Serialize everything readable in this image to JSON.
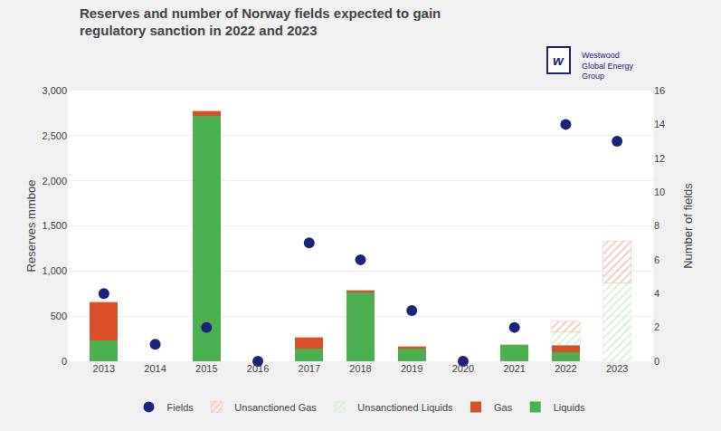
{
  "chart_data": {
    "type": "bar",
    "title": "Reserves and number of Norway fields expected to gain\nregulatory sanction in 2022 and 2023",
    "ylabel": "Reserves mmboe",
    "y2label": "Number of fields",
    "annotations": [
      "w",
      "Westwood\nGlobal Energy\nGroup"
    ],
    "categories": [
      "2013",
      "2014",
      "2015",
      "2016",
      "2017",
      "2018",
      "2019",
      "2020",
      "2021",
      "2022",
      "2023"
    ],
    "stacked": true,
    "series": [
      {
        "name": "Liquids",
        "color": "#4CAF50",
        "values": [
          230,
          0,
          2720,
          0,
          140,
          760,
          140,
          0,
          185,
          100,
          0
        ]
      },
      {
        "name": "Gas",
        "color": "#D94F2A",
        "values": [
          430,
          0,
          55,
          0,
          130,
          30,
          30,
          0,
          0,
          80,
          0
        ]
      },
      {
        "name": "Unsanctioned Liquids",
        "color": "#c8f0c8",
        "marker": "hatch",
        "values": [
          0,
          0,
          0,
          0,
          0,
          0,
          0,
          0,
          0,
          145,
          870
        ]
      },
      {
        "name": "Unsanctioned Gas",
        "color": "#f5c0b0",
        "marker": "hatch",
        "values": [
          0,
          0,
          0,
          0,
          0,
          0,
          0,
          0,
          0,
          120,
          460
        ]
      },
      {
        "name": "Fields",
        "type": "scatter",
        "axis": "y2",
        "color": "#1a237e",
        "marker": "circle",
        "values": [
          4,
          1,
          2,
          0,
          7,
          6,
          3,
          0,
          2,
          14,
          13
        ]
      }
    ],
    "ylim": [
      0,
      3000
    ],
    "yticks": [
      0,
      500,
      {
        "value": 1000,
        "label": "1,000"
      },
      {
        "value": 1500,
        "label": "1,500"
      },
      {
        "value": 2000,
        "label": "2,000"
      },
      {
        "value": 2500,
        "label": "2,500"
      },
      {
        "value": 3000,
        "label": "3,000"
      }
    ],
    "y2lim": [
      0,
      16
    ],
    "y2ticks": [
      0,
      2,
      4,
      6,
      8,
      10,
      12,
      14,
      16
    ],
    "grid": true,
    "legend": "bottom"
  }
}
